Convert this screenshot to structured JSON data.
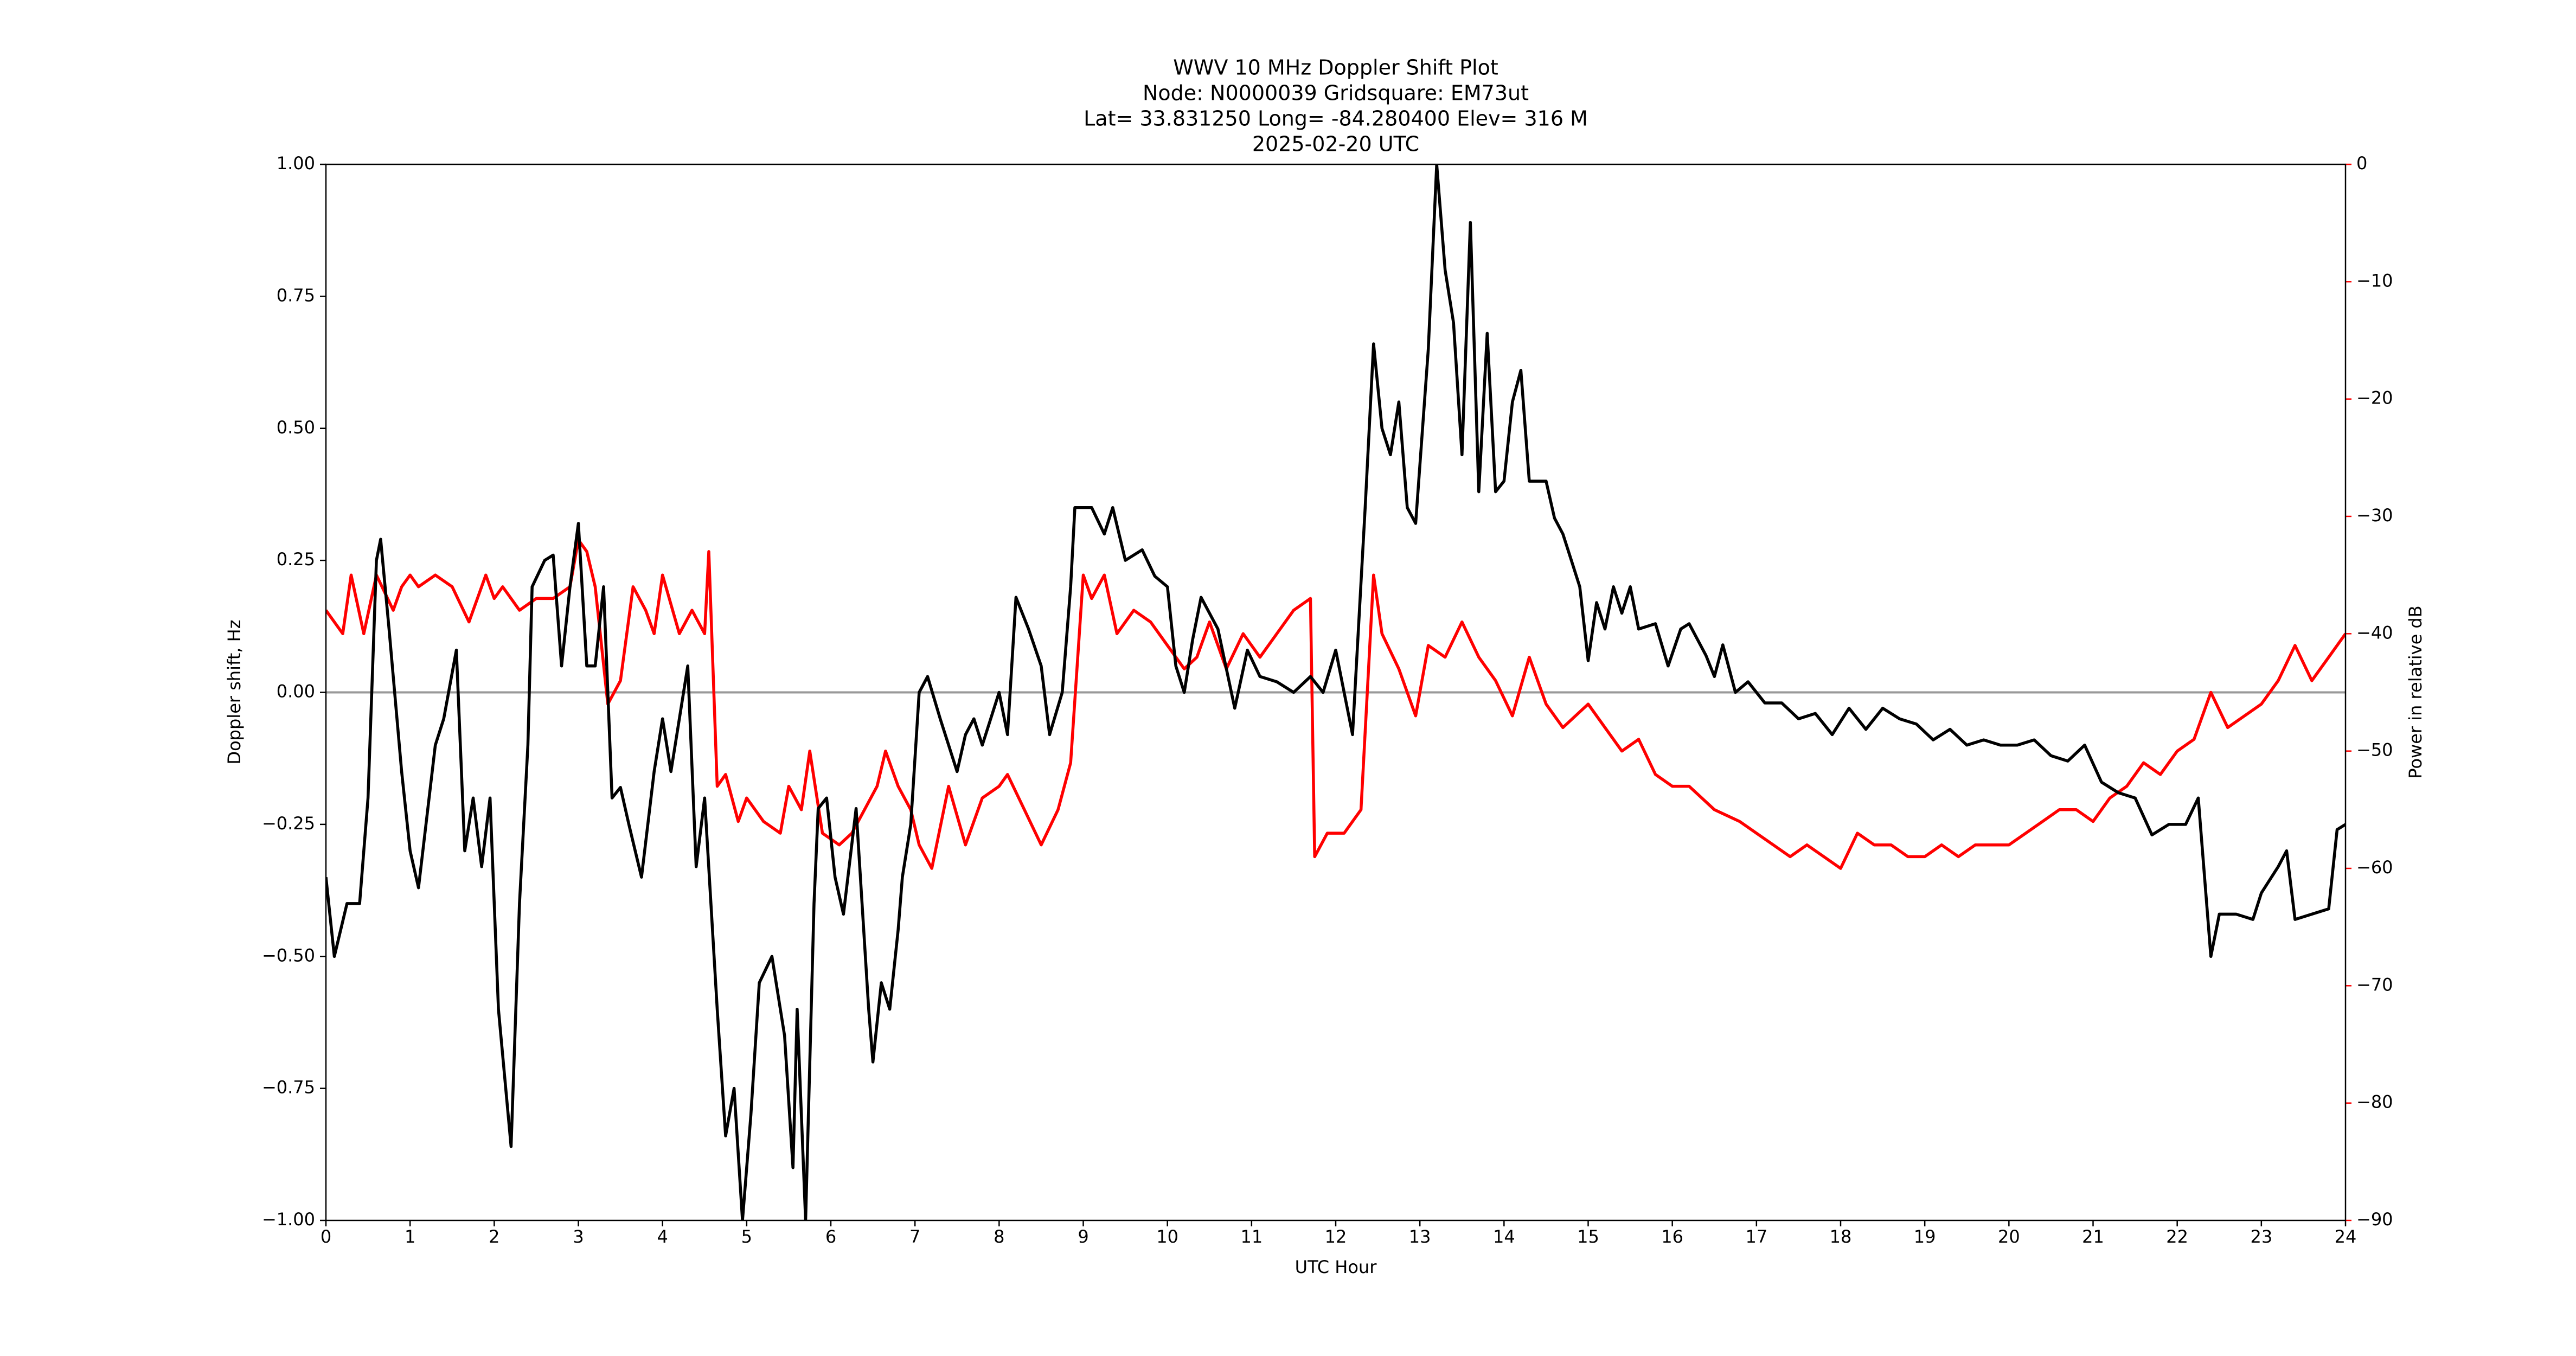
{
  "chart_data": {
    "type": "line",
    "title": [
      "WWV 10 MHz Doppler Shift Plot",
      "Node:  N0000039     Gridsquare:  EM73ut",
      "Lat= 33.831250    Long= -84.280400    Elev= 316 M",
      "2025-02-20  UTC"
    ],
    "xlabel": "UTC Hour",
    "ylabel": "Doppler shift, Hz",
    "y2label": "Power in relative dB",
    "xlim": [
      0,
      24
    ],
    "xticks": [
      0,
      1,
      2,
      3,
      4,
      5,
      6,
      7,
      8,
      9,
      10,
      11,
      12,
      13,
      14,
      15,
      16,
      17,
      18,
      19,
      20,
      21,
      22,
      23,
      24
    ],
    "ylim": [
      -1,
      1
    ],
    "yticks": [
      {
        "value": -1,
        "label": "−1.00"
      },
      {
        "value": -0.75,
        "label": "−0.75"
      },
      {
        "value": -0.5,
        "label": "−0.50"
      },
      {
        "value": -0.25,
        "label": "−0.25"
      },
      {
        "value": 0,
        "label": "0.00"
      },
      0.25,
      {
        "value": 0.5,
        "label": "0.50"
      },
      0.75,
      {
        "value": 1,
        "label": "1.00"
      }
    ],
    "y2lim": [
      -90,
      0
    ],
    "y2ticks": [
      {
        "value": -90,
        "label": "−90"
      },
      {
        "value": -80,
        "label": "−80"
      },
      {
        "value": -70,
        "label": "−70"
      },
      {
        "value": -60,
        "label": "−60"
      },
      {
        "value": -50,
        "label": "−50"
      },
      {
        "value": -40,
        "label": "−40"
      },
      {
        "value": -30,
        "label": "−30"
      },
      {
        "value": -20,
        "label": "−20"
      },
      {
        "value": -10,
        "label": "−10"
      },
      0
    ],
    "reference_line": 0,
    "reference_color": "#999999",
    "y2color": "#ff0000",
    "series": [
      {
        "color": "#000000",
        "x": [
          0,
          0.1,
          0.25,
          0.4,
          0.5,
          0.6,
          0.65,
          0.75,
          0.9,
          1.0,
          1.1,
          1.3,
          1.4,
          1.55,
          1.65,
          1.75,
          1.85,
          1.95,
          2.05,
          2.2,
          2.3,
          2.4,
          2.45,
          2.6,
          2.7,
          2.8,
          2.9,
          3.0,
          3.1,
          3.2,
          3.3,
          3.4,
          3.5,
          3.6,
          3.75,
          3.9,
          4.0,
          4.1,
          4.3,
          4.4,
          4.5,
          4.65,
          4.75,
          4.85,
          4.95,
          5.05,
          5.15,
          5.3,
          5.45,
          5.55,
          5.6,
          5.7,
          5.8,
          5.85,
          5.95,
          6.05,
          6.15,
          6.3,
          6.45,
          6.5,
          6.6,
          6.7,
          6.8,
          6.85,
          6.95,
          7.05,
          7.15,
          7.3,
          7.5,
          7.6,
          7.7,
          7.8,
          7.9,
          8.0,
          8.1,
          8.2,
          8.35,
          8.5,
          8.6,
          8.75,
          8.85,
          8.9,
          9.0,
          9.1,
          9.25,
          9.35,
          9.5,
          9.7,
          9.85,
          10.0,
          10.1,
          10.2,
          10.3,
          10.4,
          10.6,
          10.8,
          10.95,
          11.1,
          11.3,
          11.5,
          11.7,
          11.85,
          12.0,
          12.2,
          12.35,
          12.45,
          12.55,
          12.65,
          12.75,
          12.85,
          12.95,
          13.1,
          13.2,
          13.3,
          13.4,
          13.5,
          13.6,
          13.7,
          13.8,
          13.9,
          14.0,
          14.1,
          14.2,
          14.3,
          14.5,
          14.6,
          14.7,
          14.8,
          14.9,
          15.0,
          15.1,
          15.2,
          15.3,
          15.4,
          15.5,
          15.6,
          15.8,
          15.95,
          16.1,
          16.2,
          16.4,
          16.5,
          16.6,
          16.75,
          16.9,
          17.1,
          17.3,
          17.5,
          17.7,
          17.9,
          18.1,
          18.3,
          18.5,
          18.7,
          18.9,
          19.1,
          19.3,
          19.5,
          19.7,
          19.9,
          20.1,
          20.3,
          20.5,
          20.7,
          20.9,
          21.1,
          21.3,
          21.5,
          21.7,
          21.9,
          22.1,
          22.25,
          22.4,
          22.5,
          22.7,
          22.9,
          23.0,
          23.2,
          23.3,
          23.4,
          23.6,
          23.8,
          23.9,
          24.0
        ],
        "values": [
          -0.35,
          -0.5,
          -0.4,
          -0.4,
          -0.2,
          0.25,
          0.29,
          0.12,
          -0.15,
          -0.3,
          -0.37,
          -0.1,
          -0.05,
          0.08,
          -0.3,
          -0.2,
          -0.33,
          -0.2,
          -0.6,
          -0.86,
          -0.4,
          -0.1,
          0.2,
          0.25,
          0.26,
          0.05,
          0.2,
          0.32,
          0.05,
          0.05,
          0.2,
          -0.2,
          -0.18,
          -0.25,
          -0.35,
          -0.15,
          -0.05,
          -0.15,
          0.05,
          -0.33,
          -0.2,
          -0.6,
          -0.84,
          -0.75,
          -1.0,
          -0.8,
          -0.55,
          -0.5,
          -0.65,
          -0.9,
          -0.6,
          -1.0,
          -0.4,
          -0.22,
          -0.2,
          -0.35,
          -0.42,
          -0.22,
          -0.6,
          -0.7,
          -0.55,
          -0.6,
          -0.45,
          -0.35,
          -0.25,
          0.0,
          0.03,
          -0.05,
          -0.15,
          -0.08,
          -0.05,
          -0.1,
          -0.05,
          0.0,
          -0.08,
          0.18,
          0.12,
          0.05,
          -0.08,
          0.0,
          0.2,
          0.35,
          0.35,
          0.35,
          0.3,
          0.35,
          0.25,
          0.27,
          0.22,
          0.2,
          0.05,
          0.0,
          0.1,
          0.18,
          0.12,
          -0.03,
          0.08,
          0.03,
          0.02,
          0.0,
          0.03,
          0.0,
          0.08,
          -0.08,
          0.35,
          0.66,
          0.5,
          0.45,
          0.55,
          0.35,
          0.32,
          0.65,
          1.0,
          0.8,
          0.7,
          0.45,
          0.89,
          0.38,
          0.68,
          0.38,
          0.4,
          0.55,
          0.61,
          0.4,
          0.4,
          0.33,
          0.3,
          0.25,
          0.2,
          0.06,
          0.17,
          0.12,
          0.2,
          0.15,
          0.2,
          0.12,
          0.13,
          0.05,
          0.12,
          0.13,
          0.07,
          0.03,
          0.09,
          0.0,
          0.02,
          -0.02,
          -0.02,
          -0.05,
          -0.04,
          -0.08,
          -0.03,
          -0.07,
          -0.03,
          -0.05,
          -0.06,
          -0.09,
          -0.07,
          -0.1,
          -0.09,
          -0.1,
          -0.1,
          -0.09,
          -0.12,
          -0.13,
          -0.1,
          -0.17,
          -0.19,
          -0.2,
          -0.27,
          -0.25,
          -0.25,
          -0.2,
          -0.5,
          -0.42,
          -0.42,
          -0.43,
          -0.38,
          -0.33,
          -0.3,
          -0.43,
          -0.42,
          -0.41,
          -0.26,
          -0.25
        ]
      },
      {
        "color": "#ff0000",
        "axis": "y2",
        "x": [
          0,
          0.2,
          0.3,
          0.45,
          0.6,
          0.8,
          0.9,
          1.0,
          1.1,
          1.3,
          1.5,
          1.7,
          1.9,
          2.0,
          2.1,
          2.3,
          2.5,
          2.7,
          2.9,
          3.0,
          3.1,
          3.2,
          3.35,
          3.5,
          3.65,
          3.8,
          3.9,
          4.0,
          4.2,
          4.35,
          4.5,
          4.55,
          4.65,
          4.75,
          4.9,
          5.0,
          5.2,
          5.4,
          5.5,
          5.65,
          5.75,
          5.9,
          6.1,
          6.25,
          6.4,
          6.55,
          6.65,
          6.8,
          6.95,
          7.05,
          7.2,
          7.4,
          7.6,
          7.8,
          8.0,
          8.1,
          8.3,
          8.5,
          8.7,
          8.85,
          9.0,
          9.1,
          9.25,
          9.4,
          9.6,
          9.8,
          10.0,
          10.2,
          10.35,
          10.5,
          10.7,
          10.9,
          11.1,
          11.3,
          11.5,
          11.7,
          11.75,
          11.9,
          12.1,
          12.3,
          12.45,
          12.55,
          12.75,
          12.95,
          13.1,
          13.3,
          13.5,
          13.7,
          13.9,
          14.1,
          14.3,
          14.5,
          14.7,
          15.0,
          15.2,
          15.4,
          15.6,
          15.8,
          16.0,
          16.2,
          16.5,
          16.8,
          17.0,
          17.2,
          17.4,
          17.6,
          17.8,
          18.0,
          18.2,
          18.4,
          18.6,
          18.8,
          19.0,
          19.2,
          19.4,
          19.6,
          19.8,
          20.0,
          20.2,
          20.4,
          20.6,
          20.8,
          21.0,
          21.2,
          21.4,
          21.6,
          21.8,
          22.0,
          22.2,
          22.4,
          22.6,
          22.8,
          23.0,
          23.2,
          23.4,
          23.6,
          23.8,
          24.0
        ],
        "values": [
          -38,
          -40,
          -35,
          -40,
          -35,
          -38,
          -36,
          -35,
          -36,
          -35,
          -36,
          -39,
          -35,
          -37,
          -36,
          -38,
          -37,
          -37,
          -36,
          -32,
          -33,
          -36,
          -46,
          -44,
          -36,
          -38,
          -40,
          -35,
          -40,
          -38,
          -40,
          -33,
          -53,
          -52,
          -56,
          -54,
          -56,
          -57,
          -53,
          -55,
          -50,
          -57,
          -58,
          -57,
          -55,
          -53,
          -50,
          -53,
          -55,
          -58,
          -60,
          -53,
          -58,
          -54,
          -53,
          -52,
          -55,
          -58,
          -55,
          -51,
          -35,
          -37,
          -35,
          -40,
          -38,
          -39,
          -41,
          -43,
          -42,
          -39,
          -43,
          -40,
          -42,
          -40,
          -38,
          -37,
          -59,
          -57,
          -57,
          -55,
          -35,
          -40,
          -43,
          -47,
          -41,
          -42,
          -39,
          -42,
          -44,
          -47,
          -42,
          -46,
          -48,
          -46,
          -48,
          -50,
          -49,
          -52,
          -53,
          -53,
          -55,
          -56,
          -57,
          -58,
          -59,
          -58,
          -59,
          -60,
          -57,
          -58,
          -58,
          -59,
          -59,
          -58,
          -59,
          -58,
          -58,
          -58,
          -57,
          -56,
          -55,
          -55,
          -56,
          -54,
          -53,
          -51,
          -52,
          -50,
          -49,
          -45,
          -48,
          -47,
          -46,
          -44,
          -41,
          -44,
          -42,
          -40
        ]
      }
    ]
  }
}
